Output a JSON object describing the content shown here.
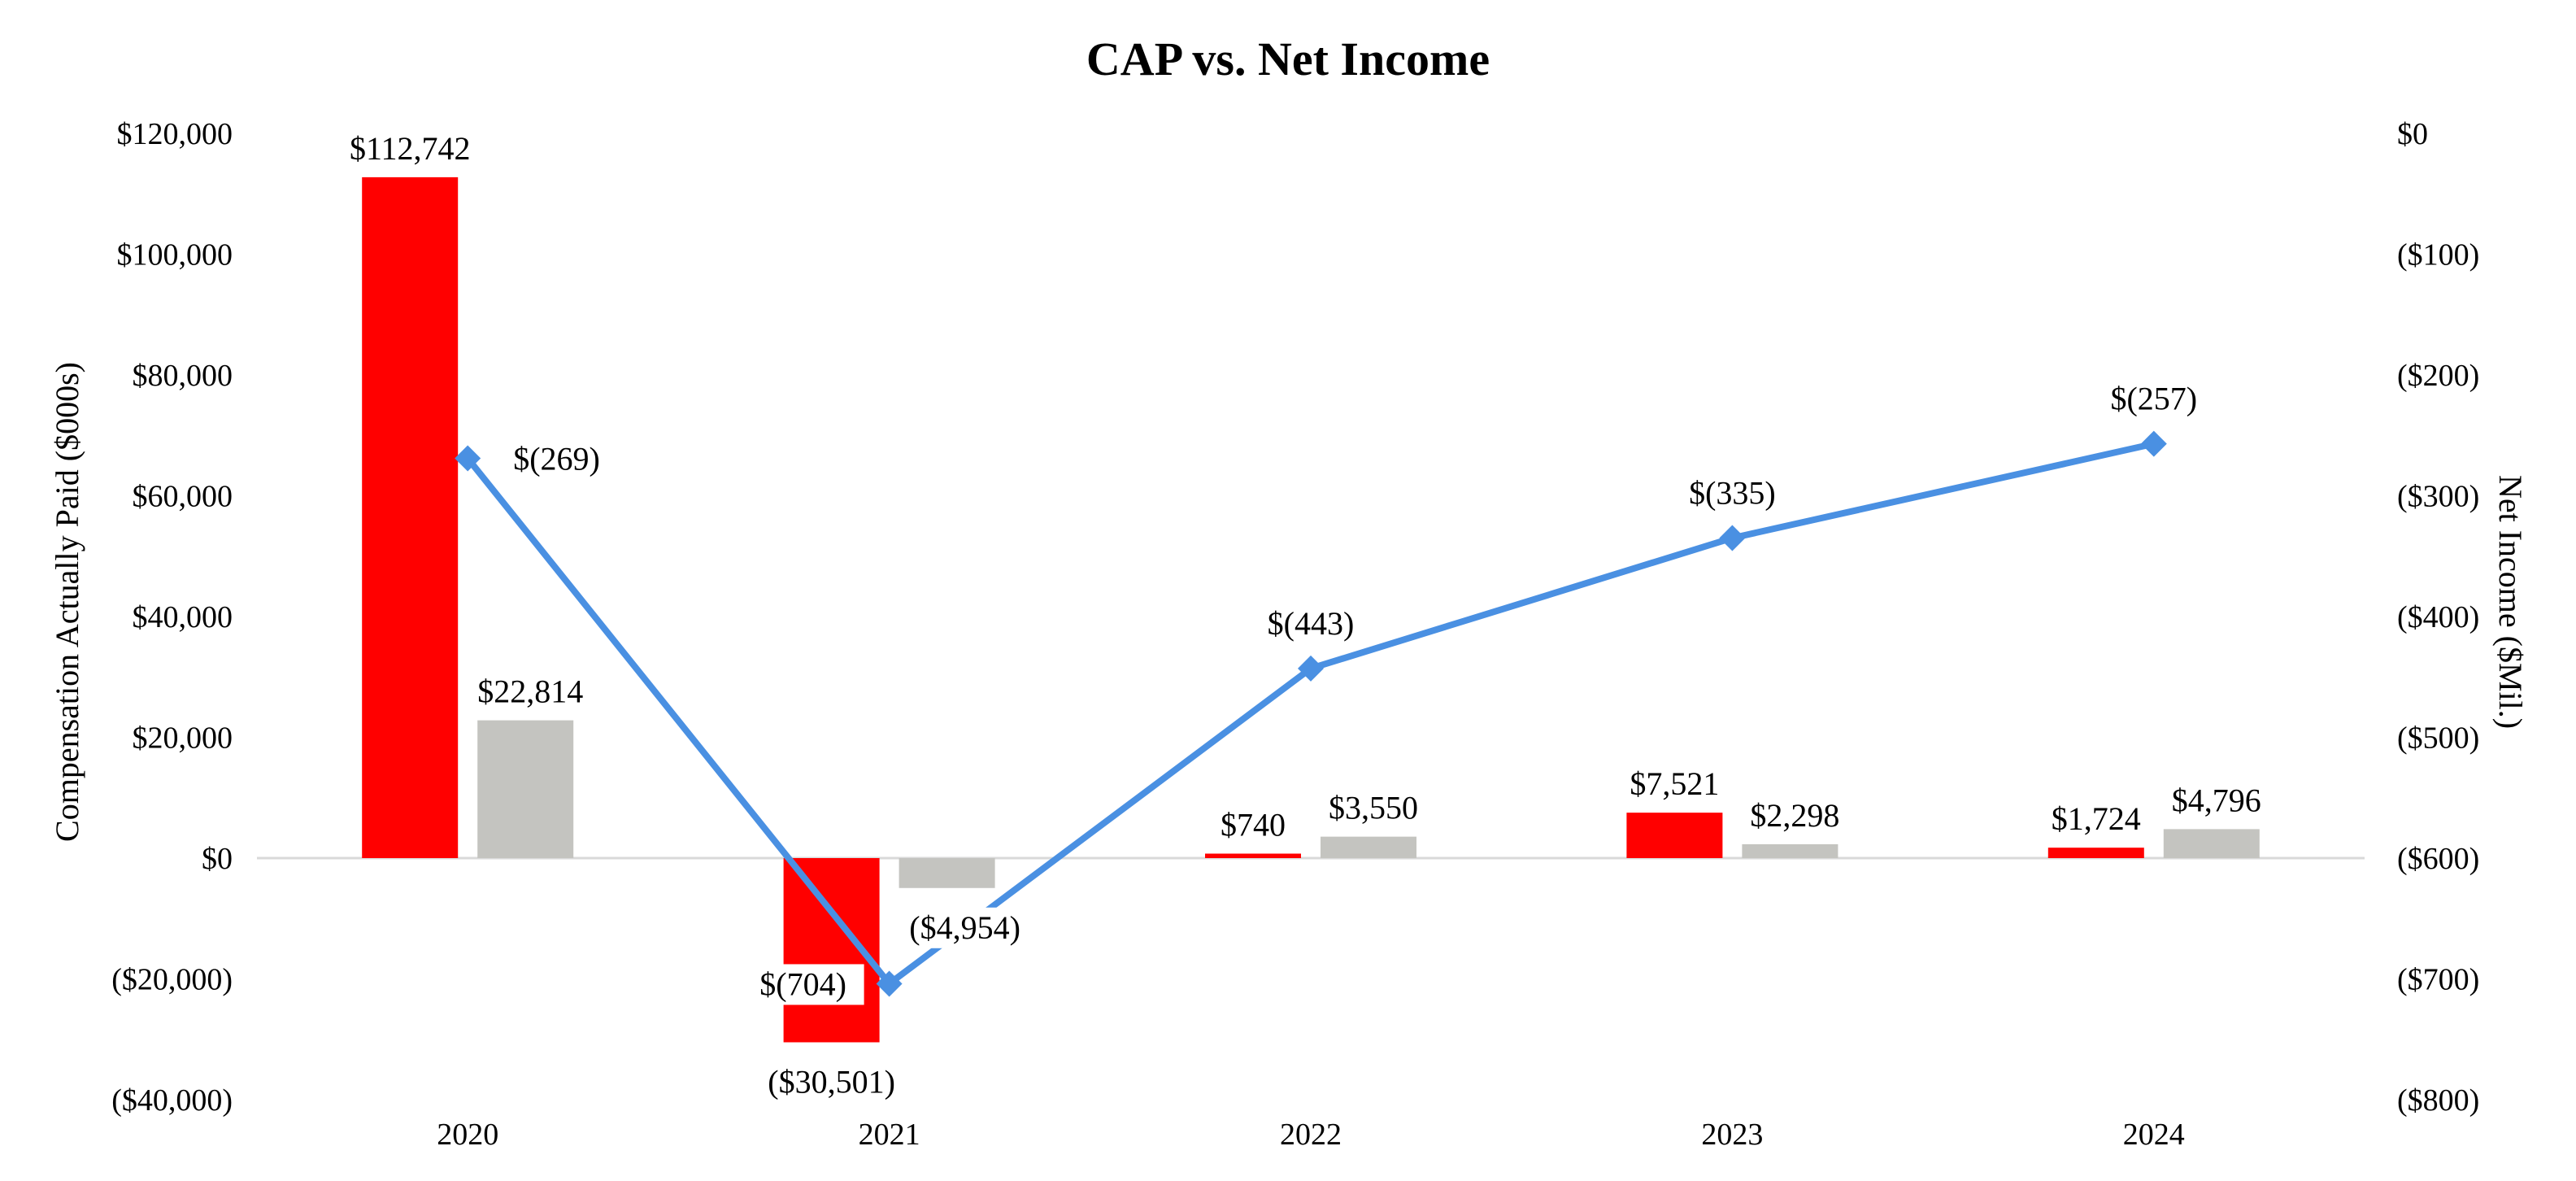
{
  "chart_data": {
    "type": "bar",
    "title": "CAP vs. Net Income",
    "categories": [
      "2020",
      "2021",
      "2022",
      "2023",
      "2024"
    ],
    "ylabel_left": "Compensation Actually Paid ($000s)",
    "ylabel_right": "Net Income ($Mil.)",
    "ylim_left": [
      -40000,
      120000
    ],
    "ylim_right": [
      -800,
      0
    ],
    "left_ticks": [
      {
        "value": 120000,
        "label": "$120,000"
      },
      {
        "value": 100000,
        "label": "$100,000"
      },
      {
        "value": 80000,
        "label": "$80,000"
      },
      {
        "value": 60000,
        "label": "$60,000"
      },
      {
        "value": 40000,
        "label": "$40,000"
      },
      {
        "value": 20000,
        "label": "$20,000"
      },
      {
        "value": 0,
        "label": "$0"
      },
      {
        "value": -20000,
        "label": "($20,000)"
      },
      {
        "value": -40000,
        "label": "($40,000)"
      }
    ],
    "right_ticks": [
      {
        "value": 0,
        "label": "$0"
      },
      {
        "value": -100,
        "label": "($100)"
      },
      {
        "value": -200,
        "label": "($200)"
      },
      {
        "value": -300,
        "label": "($300)"
      },
      {
        "value": -400,
        "label": "($400)"
      },
      {
        "value": -500,
        "label": "($500)"
      },
      {
        "value": -600,
        "label": "($600)"
      },
      {
        "value": -700,
        "label": "($700)"
      },
      {
        "value": -800,
        "label": "($800)"
      }
    ],
    "bar_series": [
      {
        "name": "CAP series 1",
        "color": "#FF0000",
        "values": [
          112742,
          -30501,
          740,
          7521,
          1724
        ],
        "labels": [
          "$112,742",
          "($30,501)",
          "$740",
          "$7,521",
          "$1,724"
        ]
      },
      {
        "name": "CAP series 2",
        "color": "#C4C4C0",
        "values": [
          22814,
          -4954,
          3550,
          2298,
          4796
        ],
        "labels": [
          "$22,814",
          "($4,954)",
          "$3,550",
          "$2,298",
          "$4,796"
        ]
      }
    ],
    "line_series": {
      "name": "Net Income",
      "color": "#4A90E2",
      "axis": "right",
      "values": [
        -269,
        -704,
        -443,
        -335,
        -257
      ],
      "labels": [
        "$(269)",
        "$(704)",
        "$(443)",
        "$(335)",
        "$(257)"
      ]
    }
  }
}
